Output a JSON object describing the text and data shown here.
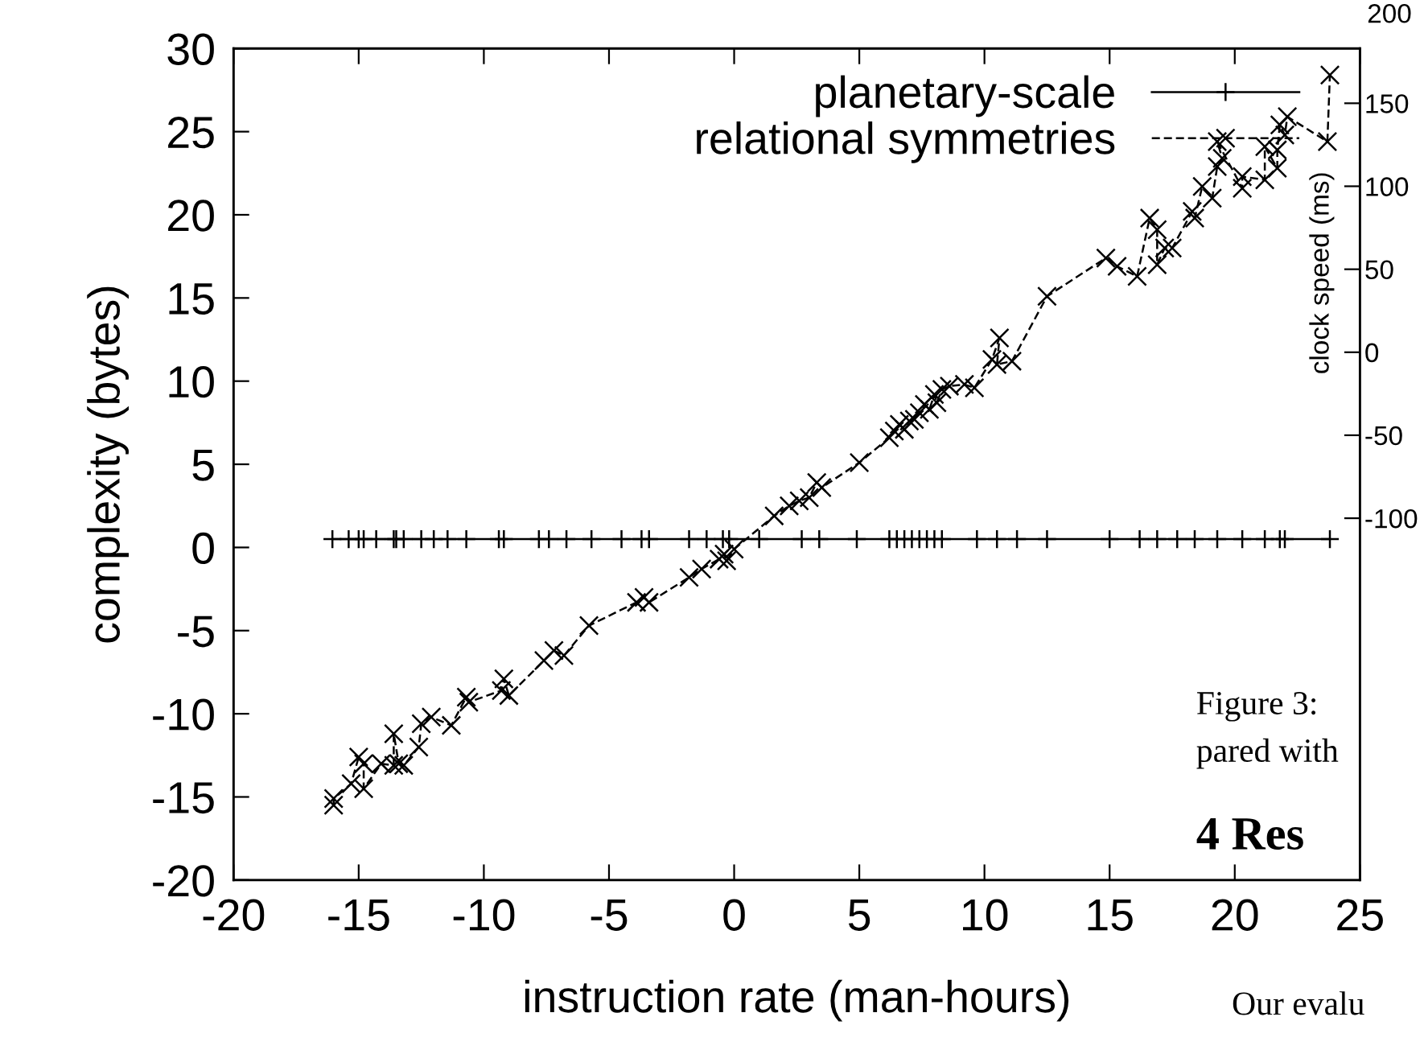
{
  "chart_data": {
    "type": "line",
    "xlabel": "instruction rate (man-hours)",
    "ylabel": "complexity (bytes)",
    "y2label": "clock speed (ms)",
    "xlim": [
      -20,
      25
    ],
    "xticks": [
      -20,
      -15,
      -10,
      -5,
      0,
      5,
      10,
      15,
      20,
      25
    ],
    "ylim": [
      -20,
      30
    ],
    "yticks": [
      -20,
      -15,
      -10,
      -5,
      0,
      5,
      10,
      15,
      20,
      25,
      30
    ],
    "y2lim": [
      -318,
      183
    ],
    "y2ticks": [
      -100,
      -50,
      0,
      50,
      100,
      150
    ],
    "legend": "top right",
    "grid": false,
    "series": [
      {
        "name": "planetary-scale",
        "color": "#000000",
        "marker": "cross",
        "line_style": "solid",
        "x": [
          -16.05,
          -15.4,
          -15.0,
          -14.8,
          -14.3,
          -13.6,
          -13.5,
          -13.2,
          -12.5,
          -12.0,
          -11.45,
          -10.7,
          -9.4,
          -9.2,
          -7.8,
          -7.4,
          -6.7,
          -5.7,
          -4.5,
          -3.7,
          -3.4,
          -1.8,
          -1.1,
          -0.45,
          -0.2,
          1.0,
          2.7,
          3.4,
          4.9,
          6.2,
          6.5,
          6.8,
          7.1,
          7.4,
          7.7,
          8.0,
          8.3,
          9.7,
          10.5,
          11.3,
          12.5,
          15.0,
          16.2,
          16.9,
          17.7,
          18.4,
          19.3,
          20.3,
          21.2,
          21.8,
          22.0,
          23.8
        ],
        "values": [
          0.5,
          0.5,
          0.5,
          0.5,
          0.5,
          0.5,
          0.5,
          0.5,
          0.5,
          0.5,
          0.5,
          0.5,
          0.5,
          0.5,
          0.5,
          0.5,
          0.5,
          0.5,
          0.5,
          0.5,
          0.5,
          0.5,
          0.5,
          0.5,
          0.5,
          0.5,
          0.5,
          0.5,
          0.5,
          0.5,
          0.5,
          0.5,
          0.5,
          0.5,
          0.5,
          0.5,
          0.5,
          0.5,
          0.5,
          0.5,
          0.5,
          0.5,
          0.5,
          0.5,
          0.5,
          0.5,
          0.5,
          0.5,
          0.5,
          0.5,
          0.5,
          0.5
        ]
      },
      {
        "name": "relational symmetries",
        "color": "#000000",
        "marker": "x",
        "line_style": "dashed",
        "x": [
          -16.0,
          -16.0,
          -15.3,
          -15.0,
          -14.8,
          -14.8,
          -14.1,
          -13.6,
          -13.6,
          -13.4,
          -13.2,
          -12.6,
          -12.5,
          -12.1,
          -11.3,
          -10.7,
          -10.6,
          -9.3,
          -9.2,
          -9.0,
          -7.6,
          -7.2,
          -6.8,
          -5.8,
          -3.9,
          -3.6,
          -3.4,
          -1.8,
          -1.3,
          -0.6,
          -0.4,
          -0.3,
          0.0,
          1.6,
          2.2,
          2.6,
          3.0,
          3.3,
          3.5,
          5.0,
          6.2,
          6.4,
          6.6,
          6.8,
          7.0,
          7.2,
          7.4,
          7.6,
          7.8,
          8.0,
          8.1,
          8.3,
          8.6,
          9.2,
          9.6,
          10.3,
          10.6,
          10.5,
          11.1,
          12.5,
          14.85,
          15.3,
          16.1,
          16.6,
          16.9,
          16.9,
          17.2,
          17.5,
          18.3,
          18.4,
          18.7,
          19.1,
          19.3,
          19.5,
          19.3,
          20.3,
          20.3,
          21.2,
          21.2,
          21.7,
          21.7,
          21.8,
          22.0,
          22.1,
          23.7,
          23.8
        ],
        "values": [
          -15.5,
          -15.1,
          -14.2,
          -12.6,
          -13.0,
          -14.5,
          -13.0,
          -13.1,
          -11.2,
          -13.0,
          -13.1,
          -12.0,
          -10.6,
          -10.2,
          -10.7,
          -9.0,
          -9.3,
          -8.6,
          -7.9,
          -8.9,
          -6.8,
          -6.2,
          -6.5,
          -4.7,
          -3.3,
          -3.0,
          -3.3,
          -1.8,
          -1.3,
          -0.7,
          -0.4,
          -0.8,
          -0.1,
          1.9,
          2.5,
          2.8,
          3.0,
          3.9,
          3.6,
          5.1,
          6.6,
          7.0,
          7.4,
          7.1,
          7.6,
          7.7,
          8.1,
          8.6,
          8.3,
          9.2,
          8.7,
          9.5,
          9.7,
          9.8,
          9.6,
          11.3,
          12.6,
          11.0,
          11.2,
          15.1,
          17.4,
          16.9,
          16.3,
          19.8,
          19.1,
          17.0,
          18.0,
          18.0,
          20.2,
          19.8,
          21.7,
          21.0,
          22.9,
          23.4,
          24.4,
          21.6,
          22.3,
          22.1,
          24.1,
          22.8,
          23.9,
          25.4,
          24.8,
          25.9,
          24.4,
          28.4
        ]
      }
    ],
    "annotations": [
      "200",
      "Figure 3:",
      "pared with",
      "4 Res",
      "Our evalu"
    ]
  }
}
